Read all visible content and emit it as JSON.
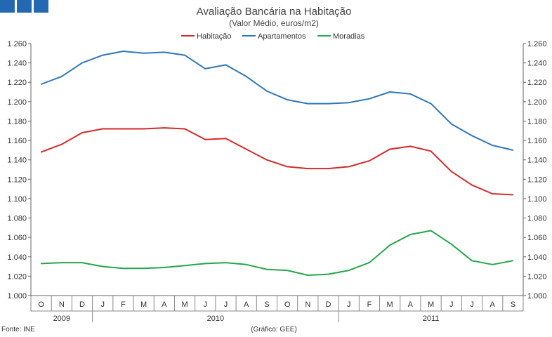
{
  "chart_data": {
    "type": "line",
    "title": "Avaliação Bancária na Habitação",
    "subtitle": "(Valor Médio, euros/m2)",
    "xlabel": "",
    "ylabel": "",
    "ylim": [
      1.0,
      1.26
    ],
    "ytick_step": 0.02,
    "y_tick_labels": [
      "1.000",
      "1.020",
      "1.040",
      "1.060",
      "1.080",
      "1.100",
      "1.120",
      "1.140",
      "1.160",
      "1.180",
      "1.200",
      "1.220",
      "1.240",
      "1.260"
    ],
    "categories": [
      "O",
      "N",
      "D",
      "J",
      "F",
      "M",
      "A",
      "M",
      "J",
      "J",
      "A",
      "S",
      "O",
      "N",
      "D",
      "J",
      "F",
      "M",
      "A",
      "M",
      "J",
      "J",
      "A",
      "S"
    ],
    "years": [
      {
        "label": "2009",
        "start": 0,
        "end": 2
      },
      {
        "label": "2010",
        "start": 3,
        "end": 14
      },
      {
        "label": "2011",
        "start": 15,
        "end": 23
      }
    ],
    "legend_position": "top-center",
    "grid": false,
    "series": [
      {
        "name": "Habitação",
        "color": "#d42a2a",
        "values": [
          1.148,
          1.156,
          1.168,
          1.172,
          1.172,
          1.172,
          1.173,
          1.172,
          1.161,
          1.162,
          1.151,
          1.14,
          1.133,
          1.131,
          1.131,
          1.133,
          1.139,
          1.151,
          1.154,
          1.149,
          1.128,
          1.114,
          1.105,
          1.104
        ]
      },
      {
        "name": "Apartamentos",
        "color": "#2f77b8",
        "values": [
          1.218,
          1.226,
          1.24,
          1.248,
          1.252,
          1.25,
          1.251,
          1.248,
          1.234,
          1.238,
          1.226,
          1.211,
          1.202,
          1.198,
          1.198,
          1.199,
          1.203,
          1.21,
          1.208,
          1.198,
          1.177,
          1.165,
          1.155,
          1.15
        ]
      },
      {
        "name": "Moradias",
        "color": "#25a64a",
        "values": [
          1.033,
          1.034,
          1.034,
          1.03,
          1.028,
          1.028,
          1.029,
          1.031,
          1.033,
          1.034,
          1.032,
          1.027,
          1.026,
          1.021,
          1.022,
          1.026,
          1.034,
          1.052,
          1.063,
          1.067,
          1.053,
          1.036,
          1.032,
          1.036
        ]
      }
    ]
  },
  "header": {
    "logo_icon": "ine-logo-squares-icon",
    "logo_color": "#2468b4"
  },
  "footer": {
    "source": "Fonte: INE",
    "credit": "(Gráfico: GEE)"
  }
}
